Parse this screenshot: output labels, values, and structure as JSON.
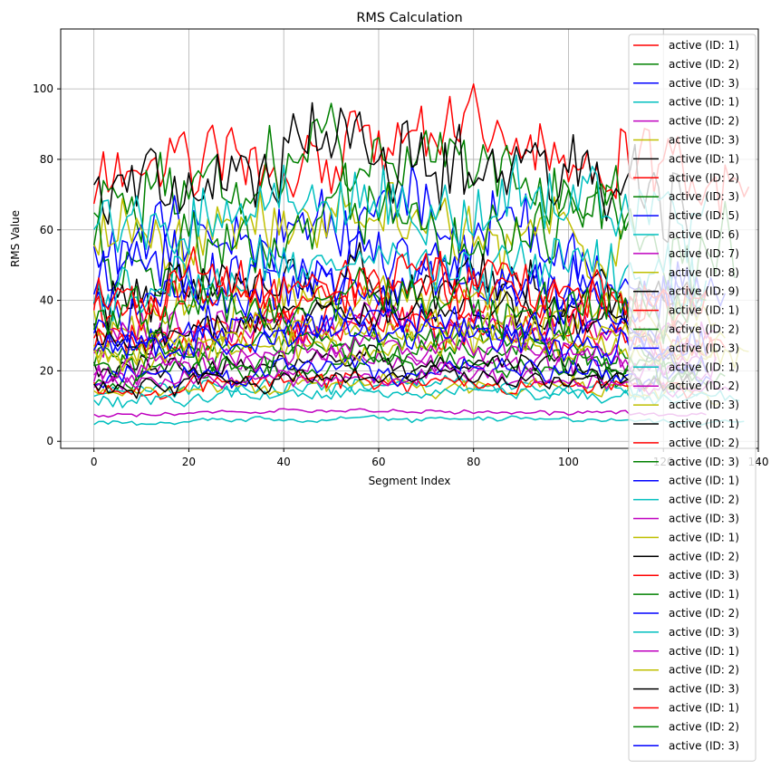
{
  "chart_data": {
    "type": "line",
    "title": "RMS Calculation",
    "xlabel": "Segment Index",
    "ylabel": "RMS Value",
    "xlim": [
      -7,
      140
    ],
    "ylim": [
      -2,
      117
    ],
    "xticks": [
      0,
      20,
      40,
      60,
      80,
      100,
      120,
      140
    ],
    "xtick_labels": [
      "0",
      "20",
      "40",
      "60",
      "80",
      "100",
      "120",
      "140"
    ],
    "yticks": [
      0,
      20,
      40,
      60,
      80,
      100
    ],
    "ytick_labels": [
      "0",
      "20",
      "40",
      "60",
      "80",
      "100"
    ],
    "grid": true,
    "legend_position": "top-right",
    "palette": [
      "#ff0000",
      "#008000",
      "#0000ff",
      "#00bfbf",
      "#bf00bf",
      "#bfbf00",
      "#000000"
    ],
    "series": [
      {
        "name": "active (ID: 1)",
        "color": "#ff0000",
        "length": 139,
        "base": 75,
        "amp": 14,
        "seed": 1
      },
      {
        "name": "active (ID: 2)",
        "color": "#008000",
        "length": 114,
        "base": 68,
        "amp": 12,
        "seed": 2
      },
      {
        "name": "active (ID: 3)",
        "color": "#0000ff",
        "length": 108,
        "base": 55,
        "amp": 12,
        "seed": 3
      },
      {
        "name": "active (ID: 1)",
        "color": "#00bfbf",
        "length": 138,
        "base": 5.5,
        "amp": 0.8,
        "seed": 4
      },
      {
        "name": "active (ID: 2)",
        "color": "#bf00bf",
        "length": 130,
        "base": 7.5,
        "amp": 0.8,
        "seed": 5
      },
      {
        "name": "active (ID: 3)",
        "color": "#bfbf00",
        "length": 112,
        "base": 55,
        "amp": 12,
        "seed": 6
      },
      {
        "name": "active (ID: 1)",
        "color": "#000000",
        "length": 126,
        "base": 72,
        "amp": 14,
        "seed": 7
      },
      {
        "name": "active (ID: 2)",
        "color": "#ff0000",
        "length": 134,
        "base": 30,
        "amp": 6,
        "seed": 8
      },
      {
        "name": "active (ID: 3)",
        "color": "#008000",
        "length": 136,
        "base": 55,
        "amp": 12,
        "seed": 9
      },
      {
        "name": "active (ID: 5)",
        "color": "#0000ff",
        "length": 128,
        "base": 45,
        "amp": 10,
        "seed": 10
      },
      {
        "name": "active (ID: 6)",
        "color": "#00bfbf",
        "length": 130,
        "base": 14,
        "amp": 3,
        "seed": 11
      },
      {
        "name": "active (ID: 7)",
        "color": "#bf00bf",
        "length": 130,
        "base": 20,
        "amp": 4,
        "seed": 12
      },
      {
        "name": "active (ID: 8)",
        "color": "#bfbf00",
        "length": 132,
        "base": 35,
        "amp": 8,
        "seed": 13
      },
      {
        "name": "active (ID: 9)",
        "color": "#000000",
        "length": 130,
        "base": 40,
        "amp": 9,
        "seed": 14
      },
      {
        "name": "active (ID: 1)",
        "color": "#ff0000",
        "length": 132,
        "base": 28,
        "amp": 6,
        "seed": 15
      },
      {
        "name": "active (ID: 2)",
        "color": "#008000",
        "length": 134,
        "base": 18,
        "amp": 4,
        "seed": 16
      },
      {
        "name": "active (ID: 3)",
        "color": "#0000ff",
        "length": 134,
        "base": 38,
        "amp": 9,
        "seed": 17
      },
      {
        "name": "active (ID: 1)",
        "color": "#00bfbf",
        "length": 130,
        "base": 60,
        "amp": 12,
        "seed": 18
      },
      {
        "name": "active (ID: 2)",
        "color": "#bf00bf",
        "length": 132,
        "base": 30,
        "amp": 7,
        "seed": 19
      },
      {
        "name": "active (ID: 3)",
        "color": "#bfbf00",
        "length": 133,
        "base": 14,
        "amp": 3,
        "seed": 20
      },
      {
        "name": "active (ID: 1)",
        "color": "#000000",
        "length": 128,
        "base": 20,
        "amp": 4,
        "seed": 21
      },
      {
        "name": "active (ID: 2)",
        "color": "#ff0000",
        "length": 128,
        "base": 15,
        "amp": 3,
        "seed": 22
      },
      {
        "name": "active (ID: 3)",
        "color": "#008000",
        "length": 126,
        "base": 25,
        "amp": 5,
        "seed": 23
      },
      {
        "name": "active (ID: 1)",
        "color": "#0000ff",
        "length": 131,
        "base": 18,
        "amp": 4,
        "seed": 24
      },
      {
        "name": "active (ID: 2)",
        "color": "#00bfbf",
        "length": 137,
        "base": 12,
        "amp": 2.5,
        "seed": 25
      },
      {
        "name": "active (ID: 3)",
        "color": "#bf00bf",
        "length": 135,
        "base": 16,
        "amp": 3,
        "seed": 26
      },
      {
        "name": "active (ID: 1)",
        "color": "#bfbf00",
        "length": 139,
        "base": 24,
        "amp": 5,
        "seed": 27
      },
      {
        "name": "active (ID: 2)",
        "color": "#000000",
        "length": 128,
        "base": 30,
        "amp": 6,
        "seed": 28
      },
      {
        "name": "active (ID: 3)",
        "color": "#ff0000",
        "length": 130,
        "base": 38,
        "amp": 8,
        "seed": 29
      },
      {
        "name": "active (ID: 1)",
        "color": "#008000",
        "length": 130,
        "base": 22,
        "amp": 5,
        "seed": 30
      },
      {
        "name": "active (ID: 2)",
        "color": "#0000ff",
        "length": 130,
        "base": 30,
        "amp": 6,
        "seed": 31
      },
      {
        "name": "active (ID: 3)",
        "color": "#00bfbf",
        "length": 130,
        "base": 45,
        "amp": 10,
        "seed": 32
      },
      {
        "name": "active (ID: 1)",
        "color": "#bf00bf",
        "length": 132,
        "base": 22,
        "amp": 5,
        "seed": 33
      },
      {
        "name": "active (ID: 2)",
        "color": "#bfbf00",
        "length": 134,
        "base": 28,
        "amp": 6,
        "seed": 34
      },
      {
        "name": "active (ID: 3)",
        "color": "#000000",
        "length": 128,
        "base": 16,
        "amp": 3,
        "seed": 35
      },
      {
        "name": "active (ID: 1)",
        "color": "#ff0000",
        "length": 130,
        "base": 40,
        "amp": 9,
        "seed": 36
      },
      {
        "name": "active (ID: 2)",
        "color": "#008000",
        "length": 130,
        "base": 35,
        "amp": 8,
        "seed": 37
      },
      {
        "name": "active (ID: 3)",
        "color": "#0000ff",
        "length": 130,
        "base": 26,
        "amp": 6,
        "seed": 38
      }
    ]
  }
}
